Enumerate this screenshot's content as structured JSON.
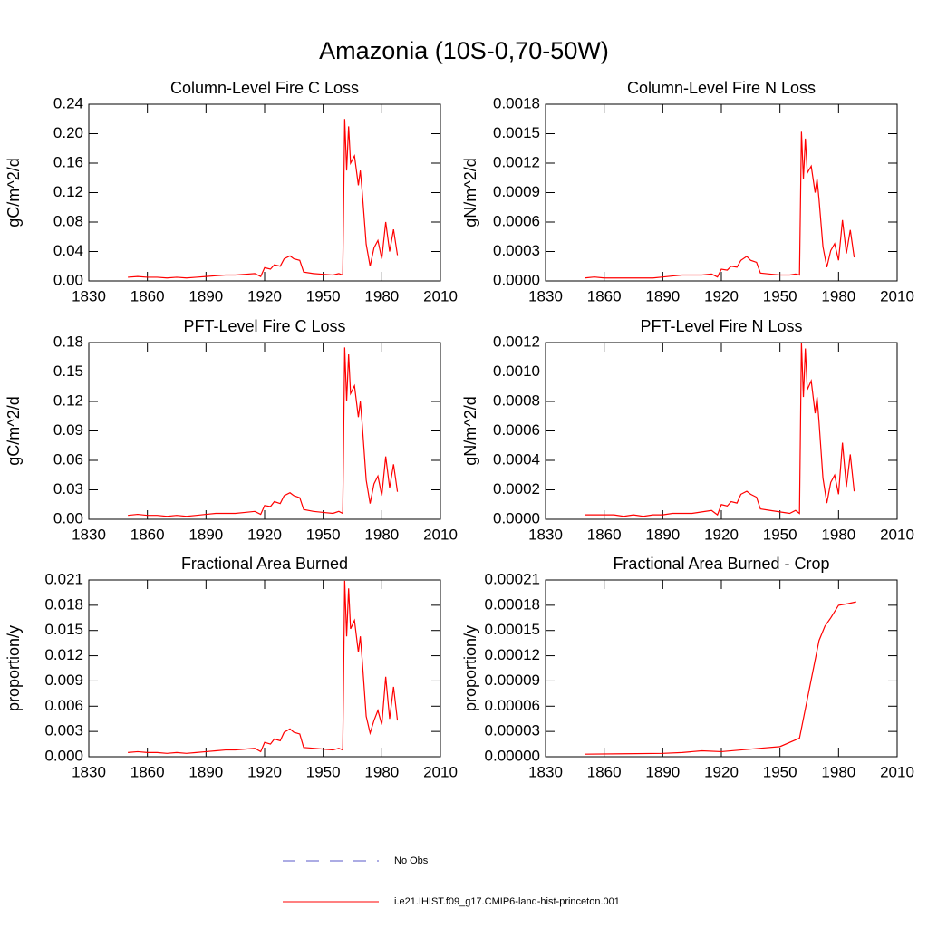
{
  "title": "Amazonia (10S-0,70-50W)",
  "legend": [
    {
      "name": "No Obs",
      "color": "#5a5ac8",
      "dash": true
    },
    {
      "name": "i.e21.IHIST.f09_g17.CMIP6-land-hist-princeton.001",
      "color": "#ff0000",
      "dash": false
    }
  ],
  "chart_data": [
    {
      "type": "line",
      "title": "Column-Level Fire C Loss",
      "ylabel": "gC/m^2/d",
      "color": "#ff0000",
      "x": [
        1850,
        1855,
        1860,
        1865,
        1870,
        1875,
        1880,
        1885,
        1890,
        1895,
        1900,
        1905,
        1910,
        1915,
        1918,
        1920,
        1923,
        1925,
        1928,
        1930,
        1933,
        1935,
        1938,
        1940,
        1945,
        1950,
        1955,
        1958,
        1960,
        1961,
        1962,
        1963,
        1964,
        1966,
        1968,
        1969,
        1970,
        1972,
        1974,
        1976,
        1978,
        1980,
        1982,
        1984,
        1986,
        1988
      ],
      "values": [
        0.005,
        0.006,
        0.005,
        0.005,
        0.004,
        0.005,
        0.004,
        0.005,
        0.006,
        0.007,
        0.008,
        0.008,
        0.009,
        0.01,
        0.006,
        0.018,
        0.016,
        0.022,
        0.02,
        0.03,
        0.034,
        0.03,
        0.028,
        0.012,
        0.01,
        0.009,
        0.008,
        0.01,
        0.008,
        0.22,
        0.15,
        0.21,
        0.16,
        0.17,
        0.13,
        0.15,
        0.12,
        0.05,
        0.02,
        0.045,
        0.055,
        0.03,
        0.08,
        0.04,
        0.07,
        0.035
      ],
      "xlim": [
        1830,
        2010
      ],
      "xticks": [
        1830,
        1860,
        1890,
        1920,
        1950,
        1980,
        2010
      ],
      "ylim": [
        0,
        0.24
      ],
      "yticks": [
        {
          "value": 0,
          "label": "0.00"
        },
        0.04,
        0.08,
        0.12,
        0.16,
        {
          "value": 0.2,
          "label": "0.20"
        },
        0.24
      ]
    },
    {
      "type": "line",
      "title": "Column-Level Fire N Loss",
      "ylabel": "gN/m^2/d",
      "color": "#ff0000",
      "x": [
        1850,
        1855,
        1860,
        1865,
        1870,
        1875,
        1880,
        1885,
        1890,
        1895,
        1900,
        1905,
        1910,
        1915,
        1918,
        1920,
        1923,
        1925,
        1928,
        1930,
        1933,
        1935,
        1938,
        1940,
        1945,
        1950,
        1955,
        1958,
        1960,
        1961,
        1962,
        1963,
        1964,
        1966,
        1968,
        1969,
        1970,
        1972,
        1974,
        1976,
        1978,
        1980,
        1982,
        1984,
        1986,
        1988
      ],
      "values": [
        3e-05,
        4e-05,
        3e-05,
        3e-05,
        3e-05,
        3e-05,
        3e-05,
        3e-05,
        4e-05,
        5e-05,
        6e-05,
        6e-05,
        6e-05,
        7e-05,
        4e-05,
        0.00012,
        0.00011,
        0.00015,
        0.00014,
        0.00021,
        0.00025,
        0.00021,
        0.00019,
        8e-05,
        7e-05,
        6e-05,
        6e-05,
        7e-05,
        6e-05,
        0.00152,
        0.00104,
        0.00145,
        0.0011,
        0.00117,
        0.0009,
        0.00104,
        0.00083,
        0.00035,
        0.00014,
        0.00031,
        0.00038,
        0.00021,
        0.00062,
        0.00028,
        0.00052,
        0.00024
      ],
      "xlim": [
        1830,
        2010
      ],
      "xticks": [
        1830,
        1860,
        1890,
        1920,
        1950,
        1980,
        2010
      ],
      "ylim": [
        0,
        0.0018
      ],
      "yticks": [
        {
          "value": 0,
          "label": "0.0000"
        },
        0.0003,
        0.0006,
        0.0009,
        0.0012,
        0.0015,
        0.0018
      ]
    },
    {
      "type": "line",
      "title": "PFT-Level Fire C Loss",
      "ylabel": "gC/m^2/d",
      "color": "#ff0000",
      "x": [
        1850,
        1855,
        1860,
        1865,
        1870,
        1875,
        1880,
        1885,
        1890,
        1895,
        1900,
        1905,
        1910,
        1915,
        1918,
        1920,
        1923,
        1925,
        1928,
        1930,
        1933,
        1935,
        1938,
        1940,
        1945,
        1950,
        1955,
        1958,
        1960,
        1961,
        1962,
        1963,
        1964,
        1966,
        1968,
        1969,
        1970,
        1972,
        1974,
        1976,
        1978,
        1980,
        1982,
        1984,
        1986,
        1988
      ],
      "values": [
        0.004,
        0.005,
        0.004,
        0.004,
        0.003,
        0.004,
        0.003,
        0.004,
        0.005,
        0.006,
        0.006,
        0.006,
        0.007,
        0.008,
        0.005,
        0.014,
        0.013,
        0.018,
        0.016,
        0.024,
        0.027,
        0.024,
        0.022,
        0.01,
        0.008,
        0.007,
        0.006,
        0.008,
        0.006,
        0.175,
        0.12,
        0.168,
        0.128,
        0.136,
        0.104,
        0.12,
        0.096,
        0.04,
        0.016,
        0.036,
        0.044,
        0.024,
        0.064,
        0.032,
        0.056,
        0.028
      ],
      "xlim": [
        1830,
        2010
      ],
      "xticks": [
        1830,
        1860,
        1890,
        1920,
        1950,
        1980,
        2010
      ],
      "ylim": [
        0,
        0.18
      ],
      "yticks": [
        {
          "value": 0,
          "label": "0.00"
        },
        0.03,
        0.06,
        0.09,
        0.12,
        0.15,
        0.18
      ]
    },
    {
      "type": "line",
      "title": "PFT-Level Fire N Loss",
      "ylabel": "gN/m^2/d",
      "color": "#ff0000",
      "x": [
        1850,
        1855,
        1860,
        1865,
        1870,
        1875,
        1880,
        1885,
        1890,
        1895,
        1900,
        1905,
        1910,
        1915,
        1918,
        1920,
        1923,
        1925,
        1928,
        1930,
        1933,
        1935,
        1938,
        1940,
        1945,
        1950,
        1955,
        1958,
        1960,
        1961,
        1962,
        1963,
        1964,
        1966,
        1968,
        1969,
        1970,
        1972,
        1974,
        1976,
        1978,
        1980,
        1982,
        1984,
        1986,
        1988
      ],
      "values": [
        3e-05,
        3e-05,
        3e-05,
        3e-05,
        2e-05,
        3e-05,
        2e-05,
        3e-05,
        3e-05,
        4e-05,
        4e-05,
        4e-05,
        5e-05,
        6e-05,
        3e-05,
        0.0001,
        9e-05,
        0.00012,
        0.00011,
        0.00017,
        0.00019,
        0.00017,
        0.00015,
        7e-05,
        6e-05,
        5e-05,
        4e-05,
        6e-05,
        4e-05,
        0.0012,
        0.00083,
        0.00116,
        0.00088,
        0.00094,
        0.00072,
        0.00083,
        0.00066,
        0.00028,
        0.00011,
        0.00025,
        0.0003,
        0.00017,
        0.00052,
        0.00022,
        0.00044,
        0.00019
      ],
      "xlim": [
        1830,
        2010
      ],
      "xticks": [
        1830,
        1860,
        1890,
        1920,
        1950,
        1980,
        2010
      ],
      "ylim": [
        0,
        0.0012
      ],
      "yticks": [
        {
          "value": 0,
          "label": "0.0000"
        },
        0.0002,
        0.0004,
        0.0006,
        0.0008,
        {
          "value": 0.001,
          "label": "0.0010"
        },
        0.0012
      ]
    },
    {
      "type": "line",
      "title": "Fractional Area Burned",
      "ylabel": "proportion/y",
      "color": "#ff0000",
      "x": [
        1850,
        1855,
        1860,
        1865,
        1870,
        1875,
        1880,
        1885,
        1890,
        1895,
        1900,
        1905,
        1910,
        1915,
        1918,
        1920,
        1923,
        1925,
        1928,
        1930,
        1933,
        1935,
        1938,
        1940,
        1945,
        1950,
        1955,
        1958,
        1960,
        1961,
        1962,
        1963,
        1964,
        1966,
        1968,
        1969,
        1970,
        1972,
        1974,
        1976,
        1978,
        1980,
        1982,
        1984,
        1986,
        1988
      ],
      "values": [
        0.0005,
        0.0006,
        0.0005,
        0.0005,
        0.0004,
        0.0005,
        0.0004,
        0.0005,
        0.0006,
        0.0007,
        0.0008,
        0.0008,
        0.0009,
        0.001,
        0.0006,
        0.0017,
        0.0015,
        0.0021,
        0.0019,
        0.0029,
        0.0033,
        0.0029,
        0.0027,
        0.0011,
        0.001,
        0.0009,
        0.0008,
        0.001,
        0.0008,
        0.0209,
        0.0143,
        0.02,
        0.0152,
        0.0162,
        0.0124,
        0.0143,
        0.0114,
        0.0048,
        0.0028,
        0.0043,
        0.0055,
        0.0038,
        0.0095,
        0.0045,
        0.0083,
        0.0043
      ],
      "xlim": [
        1830,
        2010
      ],
      "xticks": [
        1830,
        1860,
        1890,
        1920,
        1950,
        1980,
        2010
      ],
      "ylim": [
        0,
        0.021
      ],
      "yticks": [
        {
          "value": 0,
          "label": "0.000"
        },
        0.003,
        0.006,
        0.009,
        0.012,
        0.015,
        0.018,
        0.021
      ]
    },
    {
      "type": "line",
      "title": "Fractional Area Burned - Crop",
      "ylabel": "proportion/y",
      "color": "#ff0000",
      "x": [
        1850,
        1870,
        1890,
        1900,
        1910,
        1920,
        1930,
        1940,
        1950,
        1960,
        1965,
        1970,
        1973,
        1976,
        1980,
        1985,
        1989
      ],
      "values": [
        3e-06,
        3.5e-06,
        4e-06,
        5e-06,
        7e-06,
        6e-06,
        8e-06,
        1e-05,
        1.2e-05,
        2.2e-05,
        8e-05,
        0.000138,
        0.000155,
        0.000165,
        0.00018,
        0.000182,
        0.000184
      ],
      "xlim": [
        1830,
        2010
      ],
      "xticks": [
        1830,
        1860,
        1890,
        1920,
        1950,
        1980,
        2010
      ],
      "ylim": [
        0,
        0.00021
      ],
      "yticks": [
        {
          "value": 0,
          "label": "0.00000"
        },
        3e-05,
        6e-05,
        9e-05,
        0.00012,
        0.00015,
        0.00018,
        0.00021
      ]
    }
  ]
}
